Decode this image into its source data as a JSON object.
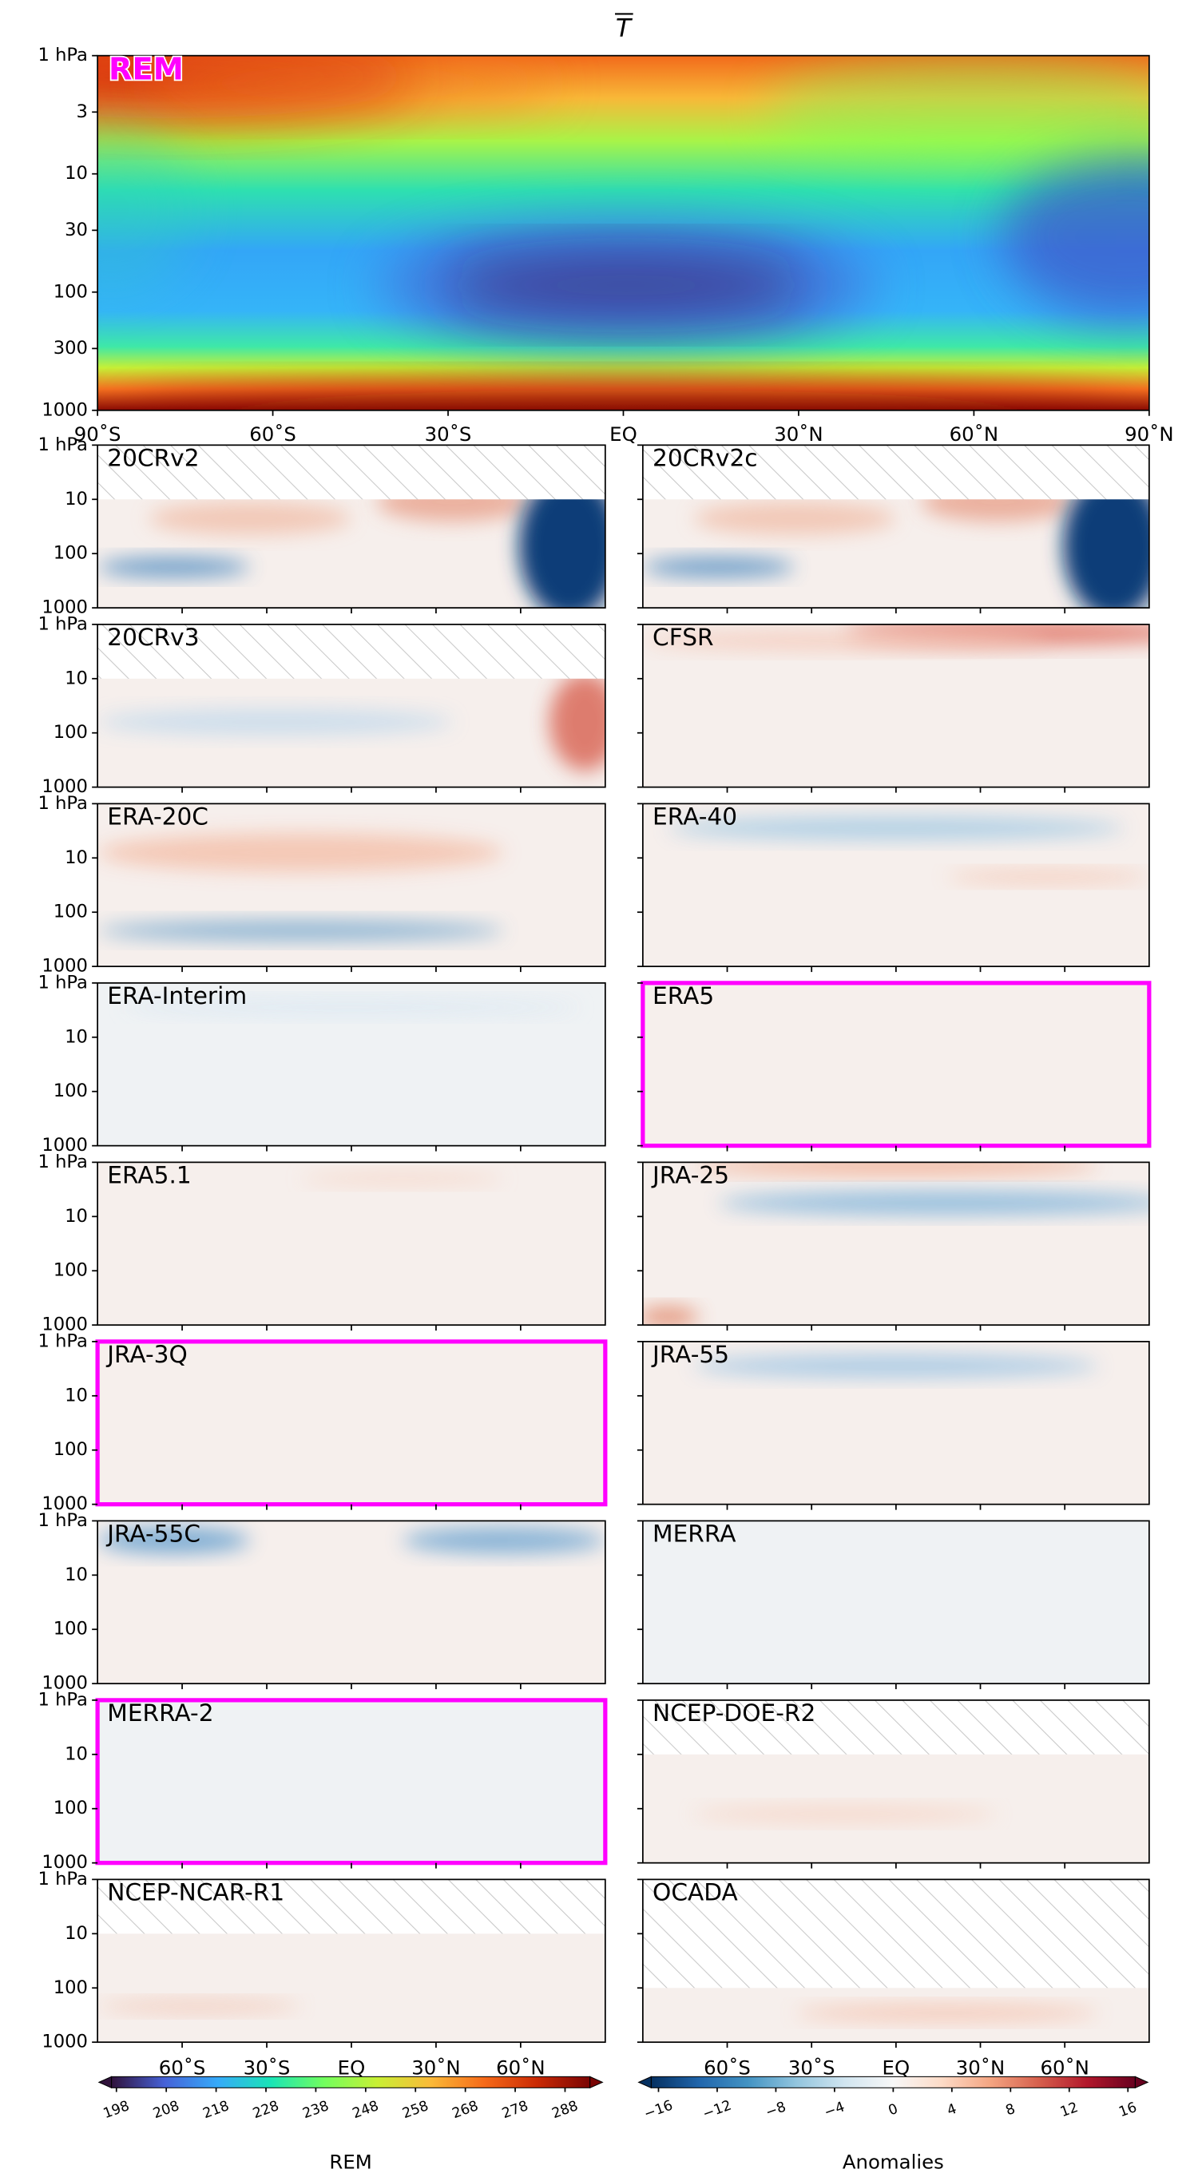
{
  "chart_data": {
    "type": "heatmap",
    "title": "T",
    "main": {
      "label": "REM",
      "xlim": [
        -90,
        90
      ],
      "xticks": [
        {
          "value": -90,
          "label": "90˚S"
        },
        {
          "value": -60,
          "label": "60˚S"
        },
        {
          "value": -30,
          "label": "30˚S"
        },
        {
          "value": 0,
          "label": "EQ"
        },
        {
          "value": 30,
          "label": "30˚N"
        },
        {
          "value": 60,
          "label": "60˚N"
        },
        {
          "value": 90,
          "label": "90˚N"
        }
      ],
      "ylim": [
        1000,
        1
      ],
      "yticks": [
        {
          "value": 1,
          "label": "1 hPa"
        },
        3,
        10,
        30,
        100,
        300,
        1000
      ],
      "log_y": true
    },
    "panels": [
      {
        "label": "20CRv2",
        "highlight": false,
        "no_data_above": 10
      },
      {
        "label": "20CRv2c",
        "highlight": false,
        "no_data_above": 10
      },
      {
        "label": "20CRv3",
        "highlight": false,
        "no_data_above": 10
      },
      {
        "label": "CFSR",
        "highlight": false
      },
      {
        "label": "ERA-20C",
        "highlight": false
      },
      {
        "label": "ERA-40",
        "highlight": false
      },
      {
        "label": "ERA-Interim",
        "highlight": false
      },
      {
        "label": "ERA5",
        "highlight": true
      },
      {
        "label": "ERA5.1",
        "highlight": false
      },
      {
        "label": "JRA-25",
        "highlight": false
      },
      {
        "label": "JRA-3Q",
        "highlight": true
      },
      {
        "label": "JRA-55",
        "highlight": false
      },
      {
        "label": "JRA-55C",
        "highlight": false
      },
      {
        "label": "MERRA",
        "highlight": false
      },
      {
        "label": "MERRA-2",
        "highlight": true
      },
      {
        "label": "NCEP-DOE-R2",
        "highlight": false,
        "no_data_above": 10
      },
      {
        "label": "NCEP-NCAR-R1",
        "highlight": false,
        "no_data_above": 10
      },
      {
        "label": "OCADA",
        "highlight": false,
        "no_data_above": 100
      }
    ],
    "panel_xlim": [
      -90,
      90
    ],
    "panel_xticks": [
      {
        "value": -60,
        "label": "60˚S"
      },
      {
        "value": -30,
        "label": "30˚S"
      },
      {
        "value": 0,
        "label": "EQ"
      },
      {
        "value": 30,
        "label": "30˚N"
      },
      {
        "value": 60,
        "label": "60˚N"
      }
    ],
    "panel_ylim": [
      1000,
      1
    ],
    "panel_yticks": [
      {
        "value": 1,
        "label": "1 hPa"
      },
      10,
      100,
      1000
    ],
    "highlight_color": "#ff00ff",
    "colorbars": [
      {
        "label": "REM",
        "cmap": "turbo",
        "lim": [
          197,
          293
        ],
        "ticks": [
          198,
          208,
          218,
          228,
          238,
          248,
          258,
          268,
          278,
          288
        ]
      },
      {
        "label": "Anomalies",
        "cmap": "RdBu_r",
        "lim": [
          -16.5,
          16.5
        ],
        "ticks": [
          {
            "value": -16,
            "label": "−16"
          },
          {
            "value": -12,
            "label": "−12"
          },
          {
            "value": -8,
            "label": "−8"
          },
          {
            "value": -4,
            "label": "−4"
          },
          0,
          4,
          8,
          12,
          16
        ]
      }
    ]
  }
}
